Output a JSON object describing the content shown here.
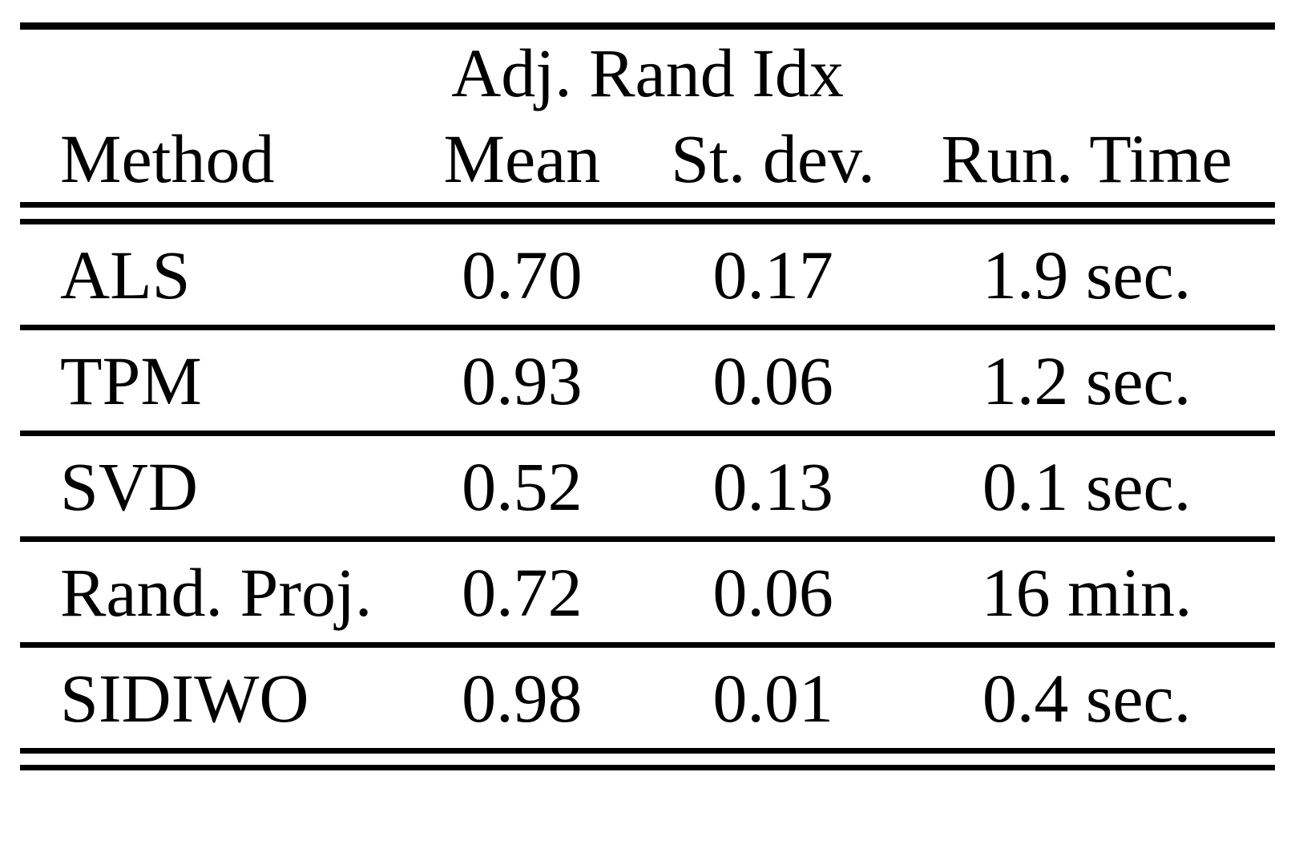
{
  "table": {
    "span_header": "Adj. Rand Idx",
    "columns": {
      "method": "Method",
      "mean": "Mean",
      "stdev": "St. dev.",
      "runtime": "Run. Time"
    },
    "rows": [
      {
        "method": "ALS",
        "mean": "0.70",
        "stdev": "0.17",
        "runtime": "1.9 sec."
      },
      {
        "method": "TPM",
        "mean": "0.93",
        "stdev": "0.06",
        "runtime": "1.2 sec."
      },
      {
        "method": "SVD",
        "mean": "0.52",
        "stdev": "0.13",
        "runtime": "0.1 sec."
      },
      {
        "method": "Rand. Proj.",
        "mean": "0.72",
        "stdev": "0.06",
        "runtime": "16 min."
      },
      {
        "method": "SIDIWO",
        "mean": "0.98",
        "stdev": "0.01",
        "runtime": "0.4 sec."
      }
    ]
  },
  "colors": {
    "background": "#ffffff",
    "text": "#000000",
    "rule": "#000000"
  },
  "chart_data": {
    "type": "table",
    "span_header": "Adj. Rand Idx",
    "span_header_covers": [
      "Mean",
      "St. dev."
    ],
    "columns": [
      "Method",
      "Mean",
      "St. dev.",
      "Run. Time"
    ],
    "rows": [
      [
        "ALS",
        "0.70",
        "0.17",
        "1.9 sec."
      ],
      [
        "TPM",
        "0.93",
        "0.06",
        "1.2 sec."
      ],
      [
        "SVD",
        "0.52",
        "0.13",
        "0.1 sec."
      ],
      [
        "Rand. Proj.",
        "0.72",
        "0.06",
        "16 min."
      ],
      [
        "SIDIWO",
        "0.98",
        "0.01",
        "0.4 sec."
      ]
    ]
  }
}
